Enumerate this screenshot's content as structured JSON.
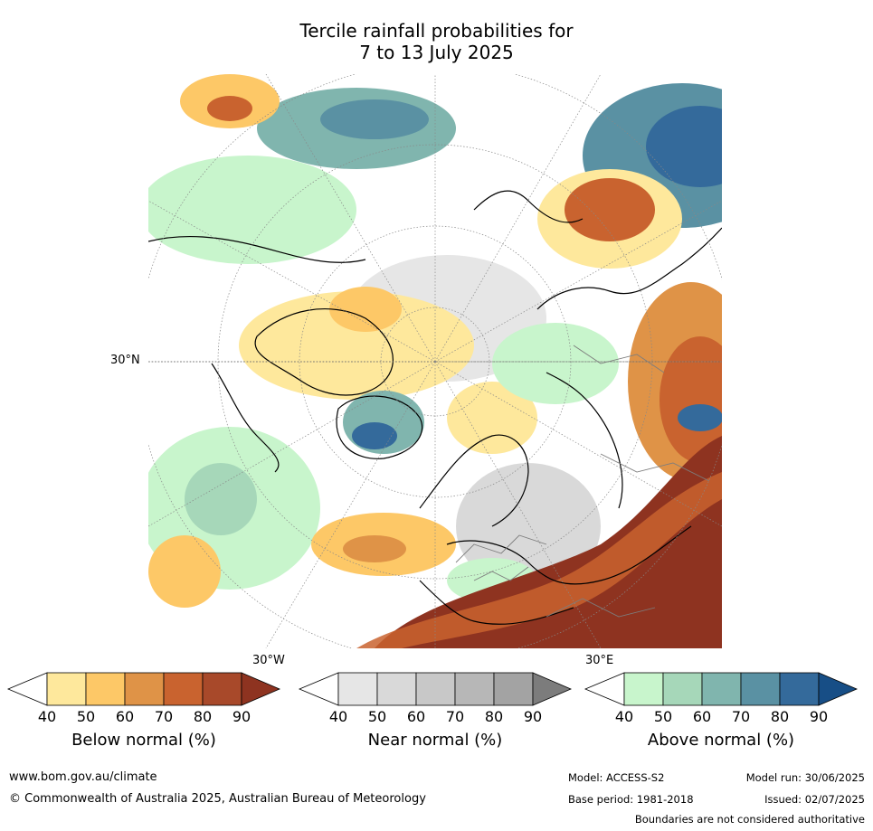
{
  "title_line1": "Tercile rainfall probabilities for",
  "title_line2": "7 to 13 July 2025",
  "map": {
    "lat_label": "30°N",
    "lon_label_west": "30°W",
    "lon_label_east": "30°E"
  },
  "colorbars": [
    {
      "title": "Below normal (%)",
      "ticks": [
        "40",
        "50",
        "60",
        "70",
        "80",
        "90"
      ],
      "colors": [
        "#ffffff",
        "#fee89c",
        "#fdc867",
        "#df9347",
        "#c9632f",
        "#a8492a",
        "#8e3320"
      ]
    },
    {
      "title": "Near normal (%)",
      "ticks": [
        "40",
        "50",
        "60",
        "70",
        "80",
        "90"
      ],
      "colors": [
        "#ffffff",
        "#e6e6e6",
        "#d9d9d9",
        "#c8c8c8",
        "#b7b7b7",
        "#a3a3a3",
        "#7c7c7c"
      ]
    },
    {
      "title": "Above normal (%)",
      "ticks": [
        "40",
        "50",
        "60",
        "70",
        "80",
        "90"
      ],
      "colors": [
        "#ffffff",
        "#c8f5cc",
        "#a6d7b9",
        "#80b5ae",
        "#5a91a3",
        "#346a9b",
        "#174e86"
      ]
    }
  ],
  "footer": {
    "website": "www.bom.gov.au/climate",
    "copyright": "© Commonwealth of Australia 2025, Australian Bureau of Meteorology",
    "model": "Model: ACCESS-S2",
    "base_period": "Base period: 1981-2018",
    "model_run": "Model run: 30/06/2025",
    "issued": "Issued: 02/07/2025",
    "disclaimer": "Boundaries are not considered authoritative"
  }
}
